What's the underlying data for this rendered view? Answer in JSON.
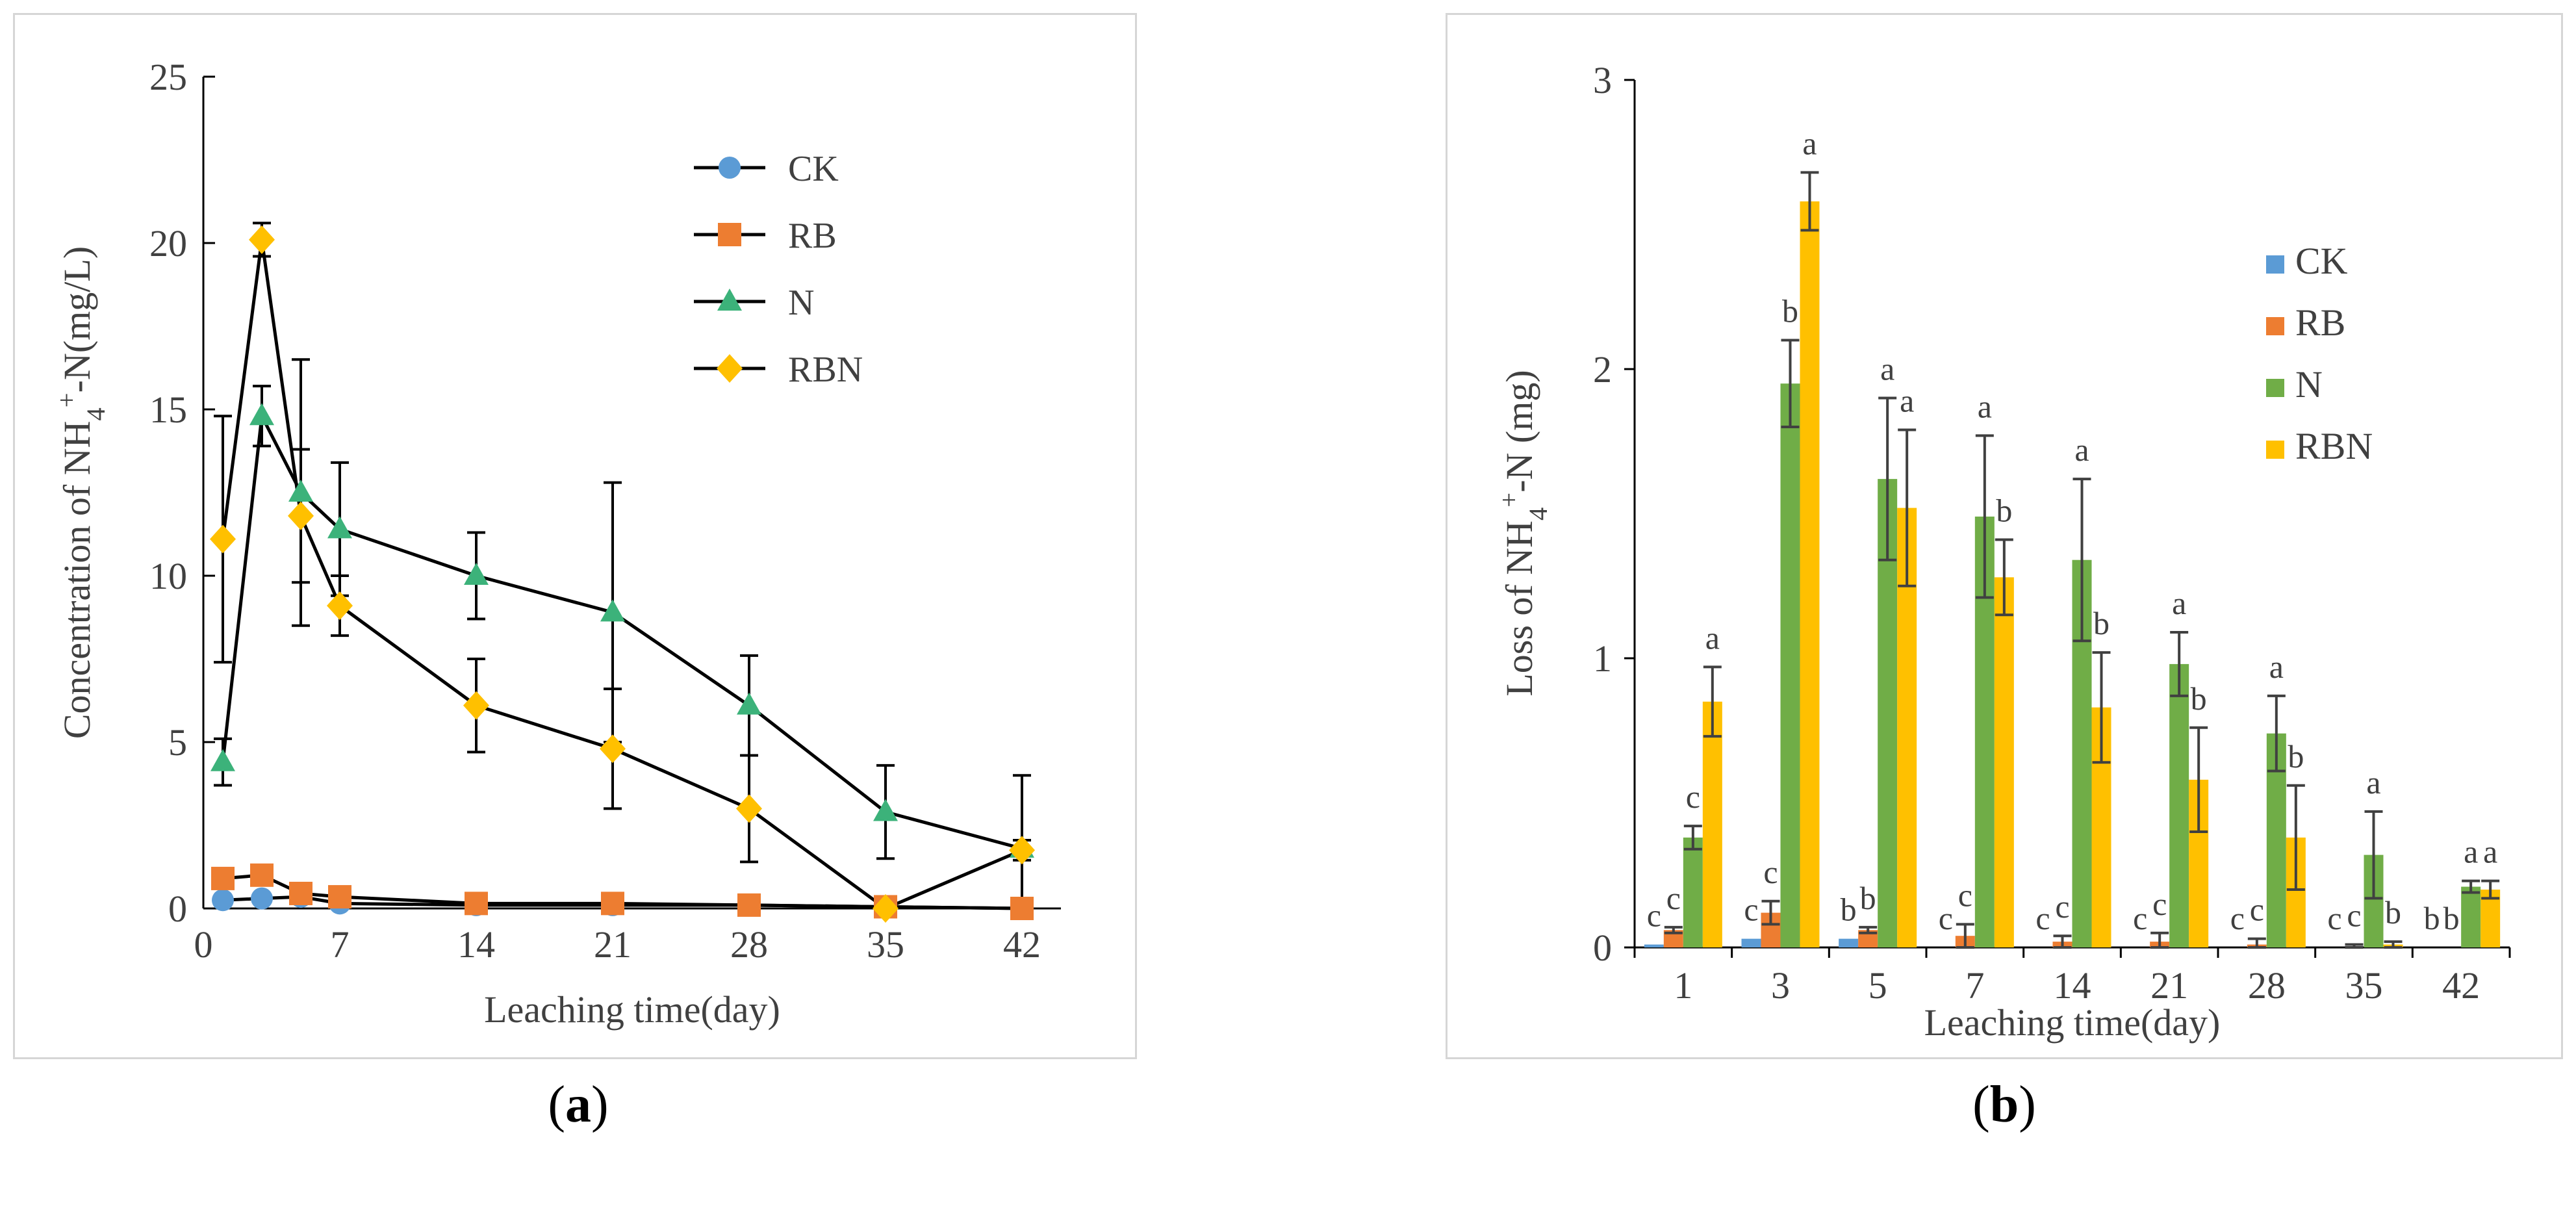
{
  "captions": {
    "a_label": "a",
    "b_label": "b"
  },
  "colors": {
    "CK": "#5b9bd5",
    "RB": "#ed7d31",
    "N": "#3cb27a",
    "RBN": "#ffc000",
    "N_bar": "#70ad47",
    "axis": "#000000",
    "text": "#404040"
  },
  "chart_data": [
    {
      "type": "line",
      "panel": "a",
      "xlabel": "Leaching time(day)",
      "ylabel_prefix": "Concentration of  NH",
      "ylabel_sub": "4",
      "ylabel_sup": "+",
      "ylabel_suffix": "-N(mg/L)",
      "xlim": [
        0,
        44
      ],
      "ylim": [
        0,
        25
      ],
      "xticks": [
        0,
        7,
        14,
        21,
        28,
        35,
        42
      ],
      "yticks": [
        0,
        5,
        10,
        15,
        20,
        25
      ],
      "legend_position": "top-right",
      "x": [
        1,
        3,
        5,
        7,
        14,
        21,
        28,
        35,
        42
      ],
      "series": [
        {
          "name": "CK",
          "marker": "circle",
          "values": [
            0.25,
            0.3,
            0.35,
            0.15,
            0.1,
            0.1,
            0.1,
            0.05,
            0.0
          ],
          "err": [
            0.1,
            0.1,
            0.1,
            0.05,
            0.05,
            0.05,
            0.05,
            0.05,
            0.0
          ]
        },
        {
          "name": "RB",
          "marker": "square",
          "values": [
            0.9,
            1.0,
            0.45,
            0.35,
            0.15,
            0.15,
            0.1,
            0.05,
            0.0
          ],
          "err": [
            0.2,
            0.2,
            0.1,
            0.1,
            0.05,
            0.05,
            0.05,
            0.05,
            0.0
          ]
        },
        {
          "name": "N",
          "marker": "triangle",
          "values": [
            4.4,
            14.8,
            12.5,
            11.4,
            10.0,
            8.9,
            6.1,
            2.9,
            1.8
          ],
          "err": [
            0.7,
            0.9,
            4.0,
            2.0,
            1.3,
            3.9,
            1.5,
            1.4,
            2.2
          ]
        },
        {
          "name": "RBN",
          "marker": "diamond",
          "values": [
            11.1,
            20.1,
            11.8,
            9.1,
            6.1,
            4.8,
            3.0,
            0.0,
            1.75
          ],
          "err": [
            3.7,
            0.5,
            2.0,
            0.9,
            1.4,
            1.8,
            1.6,
            0.1,
            0.3
          ]
        }
      ]
    },
    {
      "type": "bar",
      "panel": "b",
      "xlabel": "Leaching time(day)",
      "ylabel_prefix": "Loss of  NH",
      "ylabel_sub": "4",
      "ylabel_sup": "+",
      "ylabel_suffix": "-N  (mg)",
      "ylim": [
        0,
        3
      ],
      "yticks": [
        0,
        1,
        2,
        3
      ],
      "legend_position": "right",
      "categories": [
        "1",
        "3",
        "5",
        "7",
        "14",
        "21",
        "28",
        "35",
        "42"
      ],
      "series": [
        {
          "name": "CK",
          "values": [
            0.01,
            0.03,
            0.03,
            0.0,
            0.0,
            0.0,
            0.0,
            0.0,
            0.0
          ],
          "err": [
            0.0,
            0.0,
            0.0,
            0.0,
            0.0,
            0.0,
            0.0,
            0.0,
            0.0
          ],
          "letters": [
            "c",
            "c",
            "b",
            "c",
            "c",
            "c",
            "c",
            "c",
            "b"
          ]
        },
        {
          "name": "RB",
          "values": [
            0.06,
            0.12,
            0.06,
            0.04,
            0.02,
            0.02,
            0.01,
            0.0,
            0.0
          ],
          "err": [
            0.01,
            0.04,
            0.01,
            0.04,
            0.02,
            0.03,
            0.02,
            0.01,
            0.0
          ],
          "letters": [
            "c",
            "c",
            "b",
            "c",
            "c",
            "c",
            "c",
            "c",
            "b"
          ]
        },
        {
          "name": "N",
          "values": [
            0.38,
            1.95,
            1.62,
            1.49,
            1.34,
            0.98,
            0.74,
            0.32,
            0.21
          ],
          "err": [
            0.04,
            0.15,
            0.28,
            0.28,
            0.28,
            0.11,
            0.13,
            0.15,
            0.02
          ],
          "letters": [
            "c",
            "b",
            "a",
            "a",
            "a",
            "a",
            "a",
            "a",
            "a"
          ]
        },
        {
          "name": "RBN",
          "values": [
            0.85,
            2.58,
            1.52,
            1.28,
            0.83,
            0.58,
            0.38,
            0.01,
            0.2
          ],
          "err": [
            0.12,
            0.1,
            0.27,
            0.13,
            0.19,
            0.18,
            0.18,
            0.01,
            0.03
          ],
          "letters": [
            "a",
            "a",
            "a",
            "b",
            "b",
            "b",
            "b",
            "b",
            "a"
          ]
        }
      ]
    }
  ]
}
